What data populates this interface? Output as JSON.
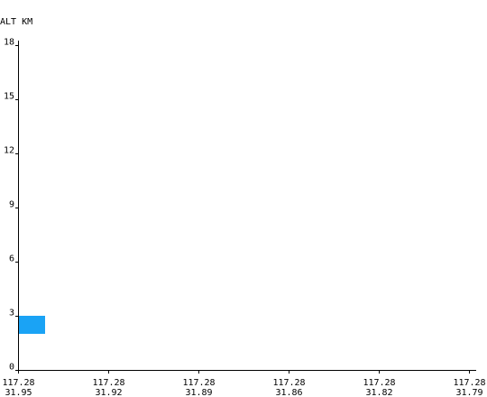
{
  "chart_data": {
    "type": "bar",
    "title": "",
    "ylabel": "ALT KM",
    "xlabel": "",
    "ylim": [
      0,
      18
    ],
    "y_ticks": [
      "0",
      "3",
      "6",
      "9",
      "12",
      "15",
      "18"
    ],
    "x_ticks": [
      {
        "lon": "117.28",
        "lat": "31.95"
      },
      {
        "lon": "117.28",
        "lat": "31.92"
      },
      {
        "lon": "117.28",
        "lat": "31.89"
      },
      {
        "lon": "117.28",
        "lat": "31.86"
      },
      {
        "lon": "117.28",
        "lat": "31.82"
      },
      {
        "lon": "117.28",
        "lat": "31.79"
      }
    ],
    "bars": [
      {
        "x_start_tick": 0,
        "x_span_ticks": 0.3,
        "alt_bottom": 2.0,
        "alt_top": 3.0,
        "color": "#1aa3f5"
      }
    ],
    "grid": false,
    "legend": "none"
  }
}
